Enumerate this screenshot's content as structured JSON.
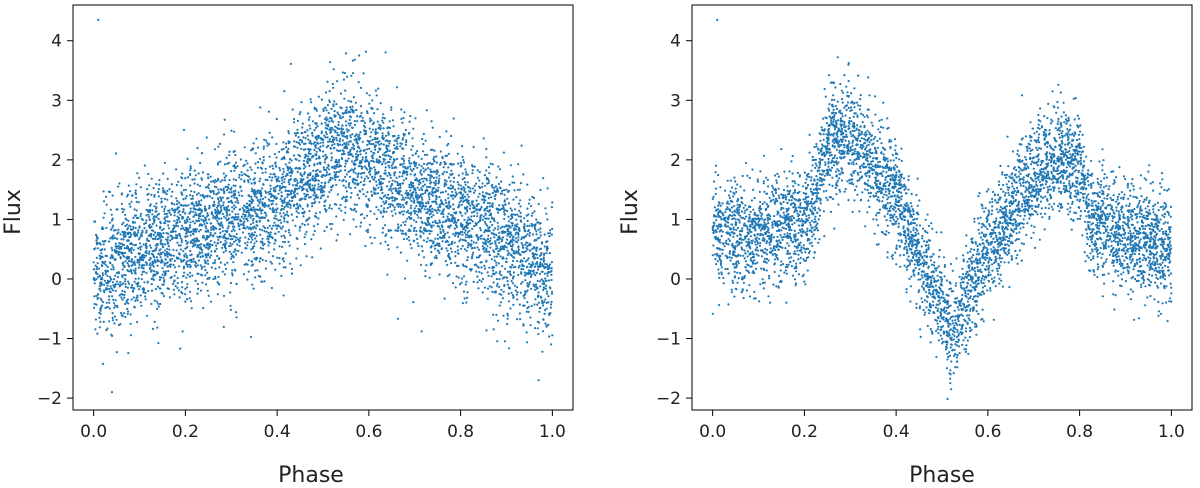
{
  "chart_data": [
    {
      "type": "scatter",
      "xlabel": "Phase",
      "ylabel": "Flux",
      "xlim": [
        -0.045,
        1.045
      ],
      "ylim": [
        -2.2,
        4.6
      ],
      "x_ticks": [
        0.0,
        0.2,
        0.4,
        0.6,
        0.8,
        1.0
      ],
      "x_tick_labels": [
        "0.0",
        "0.2",
        "0.4",
        "0.6",
        "0.8",
        "1.0"
      ],
      "y_ticks": [
        -2,
        -1,
        0,
        1,
        2,
        3,
        4
      ],
      "y_tick_labels": [
        "−2",
        "−1",
        "0",
        "1",
        "2",
        "3",
        "4"
      ],
      "grid": false,
      "legend": "none",
      "marker_color": "#1f77b4",
      "profile": {
        "phase": [
          0.0,
          0.1,
          0.2,
          0.3,
          0.4,
          0.5,
          0.55,
          0.6,
          0.7,
          0.8,
          0.9,
          1.0
        ],
        "flux": [
          0.0,
          0.45,
          0.75,
          1.0,
          1.35,
          2.0,
          2.2,
          2.05,
          1.4,
          1.0,
          0.65,
          0.05
        ]
      },
      "scatter_sd": 0.55,
      "n_points": 5200,
      "outliers": [
        {
          "x": 0.01,
          "y": 4.35
        },
        {
          "x": 0.04,
          "y": -1.9
        },
        {
          "x": 0.97,
          "y": -1.7
        }
      ]
    },
    {
      "type": "scatter",
      "xlabel": "Phase",
      "ylabel": "Flux",
      "xlim": [
        -0.045,
        1.045
      ],
      "ylim": [
        -2.2,
        4.6
      ],
      "x_ticks": [
        0.0,
        0.2,
        0.4,
        0.6,
        0.8,
        1.0
      ],
      "x_tick_labels": [
        "0.0",
        "0.2",
        "0.4",
        "0.6",
        "0.8",
        "1.0"
      ],
      "y_ticks": [
        -2,
        -1,
        0,
        1,
        2,
        3,
        4
      ],
      "y_tick_labels": [
        "−2",
        "−1",
        "0",
        "1",
        "2",
        "3",
        "4"
      ],
      "grid": false,
      "legend": "none",
      "marker_color": "#1f77b4",
      "profile": {
        "phase": [
          0.0,
          0.1,
          0.2,
          0.22,
          0.25,
          0.3,
          0.4,
          0.5,
          0.52,
          0.6,
          0.7,
          0.76,
          0.8,
          0.82,
          0.9,
          1.0
        ],
        "flux": [
          0.75,
          0.8,
          0.9,
          1.2,
          2.2,
          2.4,
          1.4,
          -0.6,
          -0.85,
          0.5,
          1.7,
          2.1,
          1.8,
          1.0,
          0.75,
          0.6
        ]
      },
      "scatter_sd": 0.45,
      "n_points": 5200,
      "outliers": [
        {
          "x": 0.01,
          "y": 4.35
        },
        {
          "x": 0.52,
          "y": -1.85
        }
      ]
    }
  ]
}
